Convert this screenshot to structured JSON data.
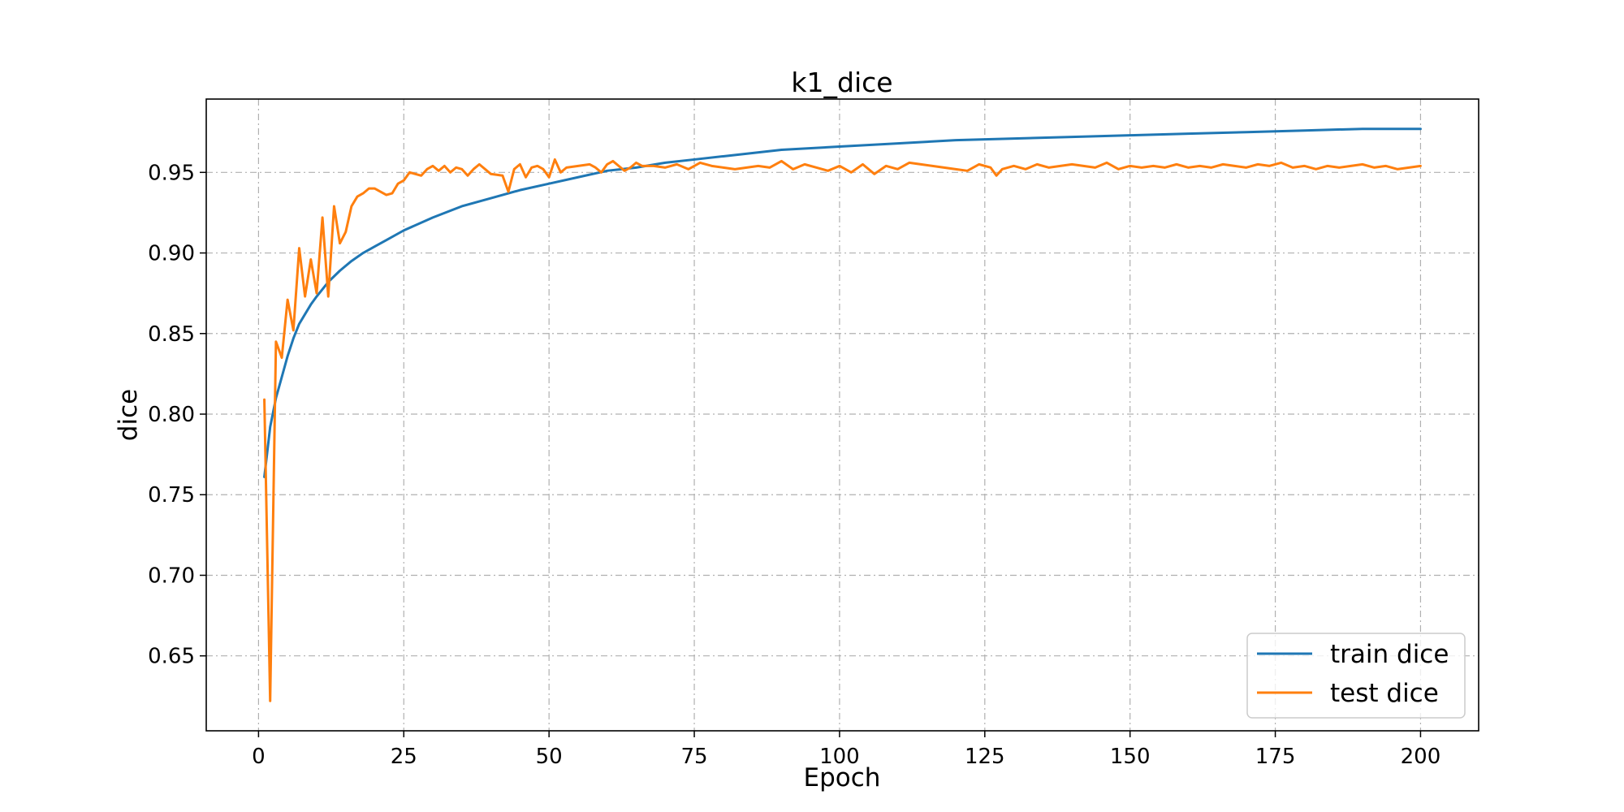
{
  "chart_data": {
    "type": "line",
    "title": "k1_dice",
    "xlabel": "Epoch",
    "ylabel": "dice",
    "xlim": [
      -9,
      210
    ],
    "ylim": [
      0.6035,
      0.9955
    ],
    "xticks": [
      0,
      25,
      50,
      75,
      100,
      125,
      150,
      175,
      200
    ],
    "yticks": [
      0.65,
      0.7,
      0.75,
      0.8,
      0.85,
      0.9,
      0.95
    ],
    "grid": true,
    "legend_position": "lower-right",
    "series": [
      {
        "name": "train dice",
        "color": "#1f77b4",
        "x": [
          1,
          2,
          3,
          4,
          5,
          6,
          7,
          8,
          9,
          10,
          12,
          14,
          16,
          18,
          20,
          22,
          25,
          30,
          35,
          40,
          45,
          50,
          55,
          60,
          65,
          70,
          75,
          80,
          90,
          100,
          110,
          120,
          130,
          140,
          150,
          160,
          170,
          180,
          190,
          200
        ],
        "y": [
          0.761,
          0.792,
          0.81,
          0.823,
          0.836,
          0.847,
          0.856,
          0.862,
          0.868,
          0.873,
          0.882,
          0.889,
          0.895,
          0.9,
          0.904,
          0.908,
          0.914,
          0.922,
          0.929,
          0.934,
          0.939,
          0.943,
          0.947,
          0.951,
          0.953,
          0.956,
          0.958,
          0.96,
          0.964,
          0.966,
          0.968,
          0.97,
          0.971,
          0.972,
          0.973,
          0.974,
          0.975,
          0.976,
          0.977,
          0.977
        ]
      },
      {
        "name": "test dice",
        "color": "#ff7f0e",
        "x": [
          1,
          2,
          3,
          4,
          5,
          6,
          7,
          8,
          9,
          10,
          11,
          12,
          13,
          14,
          15,
          16,
          17,
          18,
          19,
          20,
          22,
          23,
          24,
          25,
          26,
          27,
          28,
          29,
          30,
          31,
          32,
          33,
          34,
          35,
          36,
          37,
          38,
          40,
          42,
          43,
          44,
          45,
          46,
          47,
          48,
          49,
          50,
          51,
          52,
          53,
          55,
          57,
          58,
          59,
          60,
          61,
          62,
          63,
          64,
          65,
          66,
          68,
          70,
          72,
          74,
          76,
          78,
          80,
          82,
          84,
          86,
          88,
          90,
          92,
          94,
          96,
          98,
          100,
          102,
          104,
          106,
          108,
          110,
          112,
          114,
          116,
          118,
          120,
          122,
          124,
          126,
          127,
          128,
          130,
          132,
          134,
          136,
          138,
          140,
          142,
          144,
          146,
          148,
          150,
          152,
          154,
          156,
          158,
          160,
          162,
          164,
          166,
          168,
          170,
          172,
          174,
          176,
          178,
          180,
          182,
          184,
          186,
          188,
          190,
          192,
          194,
          196,
          198,
          200
        ],
        "y": [
          0.809,
          0.622,
          0.845,
          0.835,
          0.871,
          0.852,
          0.903,
          0.873,
          0.896,
          0.875,
          0.922,
          0.873,
          0.929,
          0.906,
          0.913,
          0.929,
          0.935,
          0.937,
          0.94,
          0.94,
          0.936,
          0.937,
          0.943,
          0.945,
          0.95,
          0.949,
          0.948,
          0.952,
          0.954,
          0.951,
          0.954,
          0.95,
          0.953,
          0.952,
          0.948,
          0.952,
          0.955,
          0.949,
          0.948,
          0.938,
          0.952,
          0.955,
          0.947,
          0.953,
          0.954,
          0.952,
          0.947,
          0.958,
          0.95,
          0.953,
          0.954,
          0.955,
          0.953,
          0.95,
          0.955,
          0.957,
          0.954,
          0.951,
          0.953,
          0.956,
          0.954,
          0.954,
          0.953,
          0.955,
          0.952,
          0.956,
          0.954,
          0.953,
          0.952,
          0.953,
          0.954,
          0.953,
          0.957,
          0.952,
          0.955,
          0.953,
          0.951,
          0.954,
          0.95,
          0.955,
          0.949,
          0.954,
          0.952,
          0.956,
          0.955,
          0.954,
          0.953,
          0.952,
          0.951,
          0.955,
          0.953,
          0.948,
          0.952,
          0.954,
          0.952,
          0.955,
          0.953,
          0.954,
          0.955,
          0.954,
          0.953,
          0.956,
          0.952,
          0.954,
          0.953,
          0.954,
          0.953,
          0.955,
          0.953,
          0.954,
          0.953,
          0.955,
          0.954,
          0.953,
          0.955,
          0.954,
          0.956,
          0.953,
          0.954,
          0.952,
          0.954,
          0.953,
          0.954,
          0.955,
          0.953,
          0.954,
          0.952,
          0.953,
          0.954
        ]
      }
    ]
  }
}
